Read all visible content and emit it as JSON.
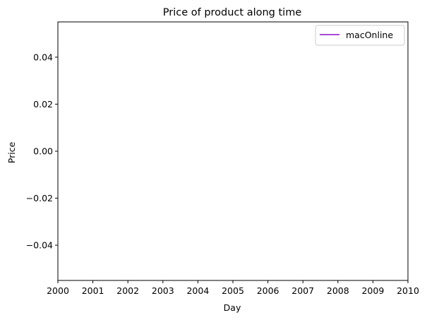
{
  "chart_data": {
    "type": "line",
    "title": "Price of product along time",
    "xlabel": "Day",
    "ylabel": "Price",
    "xlim": [
      2000,
      2010
    ],
    "ylim": [
      -0.055,
      0.055
    ],
    "x_ticks": [
      "2000",
      "2001",
      "2002",
      "2003",
      "2004",
      "2005",
      "2006",
      "2007",
      "2008",
      "2009",
      "2010"
    ],
    "y_ticks": [
      0.04,
      0.02,
      0.0,
      -0.02,
      -0.04
    ],
    "y_tick_labels": [
      "0.04",
      "0.02",
      "0.00",
      "−0.02",
      "−0.04"
    ],
    "grid": false,
    "legend_position": "top-right",
    "series": [
      {
        "name": "macOnline",
        "color": "#8a0fc9",
        "x": [],
        "y": []
      }
    ]
  }
}
